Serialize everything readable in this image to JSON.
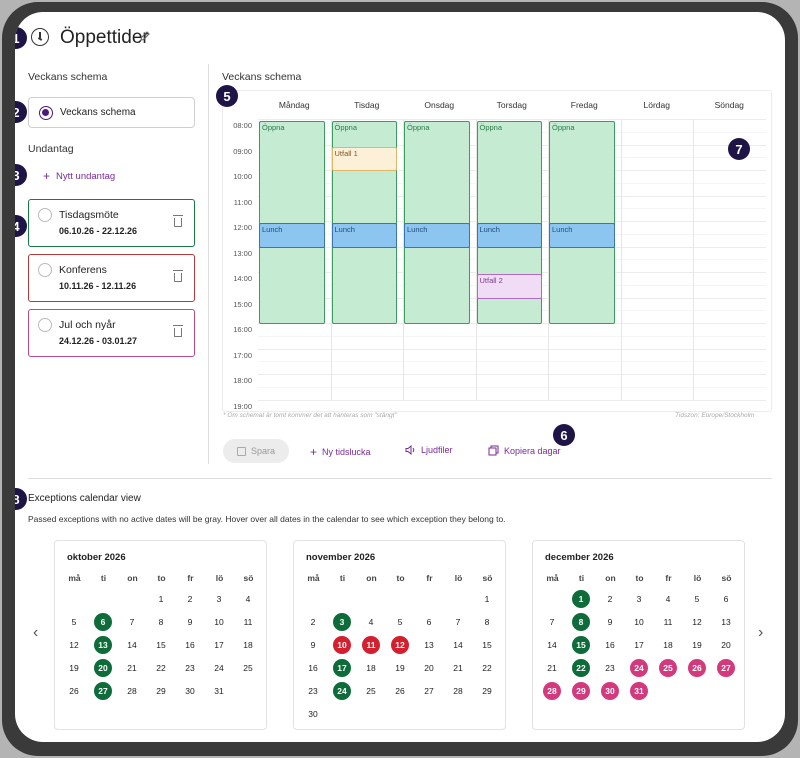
{
  "header": {
    "title": "Öppettider"
  },
  "markers": [
    "1",
    "2",
    "3",
    "4",
    "5",
    "6",
    "7",
    "8"
  ],
  "left": {
    "schedule_heading": "Veckans schema",
    "schedule_option": "Veckans schema",
    "exceptions_heading": "Undantag",
    "new_exception": "Nytt undantag",
    "exceptions": [
      {
        "name": "Tisdagsmöte",
        "dates": "06.10.26 - 22.12.26",
        "color": "#1a7a44"
      },
      {
        "name": "Konferens",
        "dates": "10.11.26 - 12.11.26",
        "color": "#b63a3a"
      },
      {
        "name": "Jul och nyår",
        "dates": "24.12.26 - 03.01.27",
        "color": "#b64a8a"
      }
    ]
  },
  "schedule": {
    "heading": "Veckans schema",
    "days": [
      "Måndag",
      "Tisdag",
      "Onsdag",
      "Torsdag",
      "Fredag",
      "Lördag",
      "Söndag"
    ],
    "hours": [
      "08:00",
      "09:00",
      "10:00",
      "11:00",
      "12:00",
      "13:00",
      "14:00",
      "15:00",
      "16:00",
      "17:00",
      "18:00",
      "19:00"
    ],
    "slot_labels": {
      "open": "Öppna",
      "lunch": "Lunch",
      "utfall1": "Utfall 1",
      "utfall2": "Utfall 2"
    },
    "note": "* Om schemat är tomt kommer det att hanteras som \"stängt\"",
    "timezone": "Tidszon: Europe/Stockholm",
    "actions": {
      "save": "Spara",
      "new_slot": "Ny tidslucka",
      "audio": "Ljudfiler",
      "copy_days": "Kopiera dagar"
    }
  },
  "calendar_view": {
    "heading": "Exceptions calendar view",
    "description": "Passed exceptions with no active dates will be gray. Hover over all dates in the calendar to see which exception they belong to.",
    "weekdays": [
      "må",
      "ti",
      "on",
      "to",
      "fr",
      "lö",
      "sö"
    ],
    "months": [
      {
        "title": "oktober 2026",
        "offset": 3,
        "days": 31,
        "green": [
          6,
          13,
          20,
          27
        ],
        "red": [],
        "pink": []
      },
      {
        "title": "november 2026",
        "offset": 6,
        "days": 30,
        "green": [
          3,
          17,
          24
        ],
        "red": [
          10,
          11,
          12
        ],
        "pink": []
      },
      {
        "title": "december 2026",
        "offset": 1,
        "days": 31,
        "green": [
          1,
          8,
          15,
          22
        ],
        "red": [],
        "pink": [
          24,
          25,
          26,
          27,
          28,
          29,
          30,
          31
        ]
      }
    ]
  },
  "colors": {
    "accent": "#7a2a9a",
    "marker": "#1f1446"
  }
}
